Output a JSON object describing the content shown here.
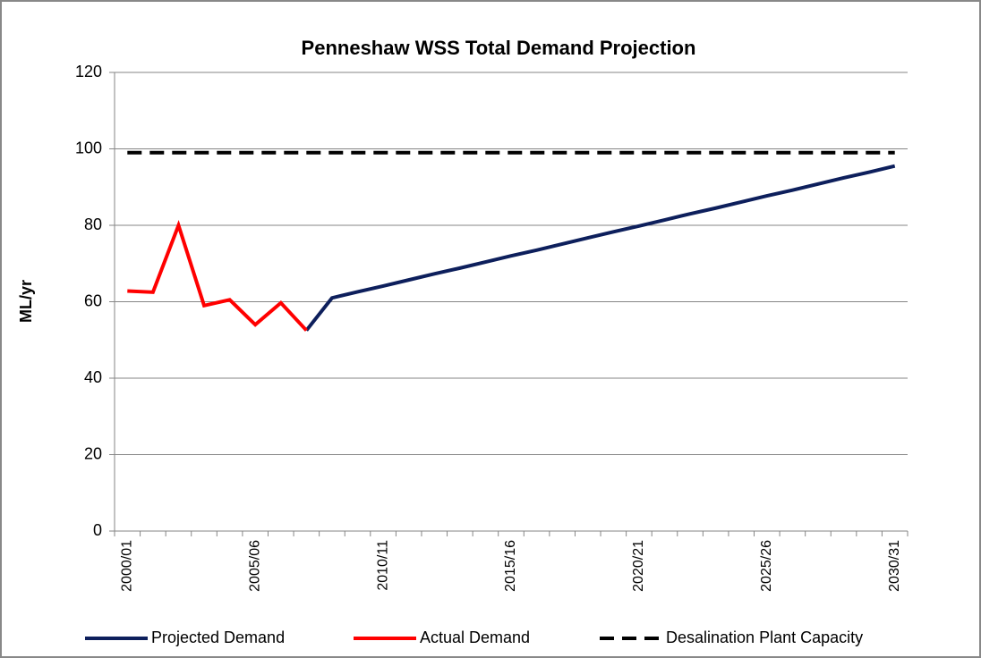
{
  "chart_data": {
    "type": "line",
    "title": "Penneshaw WSS Total Demand Projection",
    "y_label": "ML/yr",
    "categories": [
      "2000/01",
      null,
      null,
      null,
      null,
      "2005/06",
      null,
      null,
      null,
      null,
      "2010/11",
      null,
      null,
      null,
      null,
      "2015/16",
      null,
      null,
      null,
      null,
      "2020/21",
      null,
      null,
      null,
      null,
      "2025/26",
      null,
      null,
      null,
      null,
      "2030/31"
    ],
    "series": [
      {
        "name": "Projected Demand",
        "color": "#0d1f5c",
        "dash": false,
        "values": [
          null,
          null,
          null,
          null,
          null,
          null,
          null,
          52.5,
          61,
          62.6,
          64.1,
          65.7,
          67.3,
          68.8,
          70.4,
          72.0,
          73.5,
          75.1,
          76.7,
          78.3,
          79.8,
          81.4,
          83.0,
          84.5,
          86.1,
          87.7,
          89.2,
          90.8,
          92.4,
          93.9,
          95.5
        ]
      },
      {
        "name": "Actual Demand",
        "color": "#ff0000",
        "dash": false,
        "values": [
          62.8,
          62.5,
          80,
          59,
          60.5,
          54,
          59.7,
          52.5,
          null,
          null,
          null,
          null,
          null,
          null,
          null,
          null,
          null,
          null,
          null,
          null,
          null,
          null,
          null,
          null,
          null,
          null,
          null,
          null,
          null,
          null,
          null
        ]
      },
      {
        "name": "Desalination Plant Capacity",
        "color": "#000000",
        "dash": true,
        "values": [
          99,
          99,
          99,
          99,
          99,
          99,
          99,
          99,
          99,
          99,
          99,
          99,
          99,
          99,
          99,
          99,
          99,
          99,
          99,
          99,
          99,
          99,
          99,
          99,
          99,
          99,
          99,
          99,
          99,
          99,
          99
        ]
      }
    ],
    "ylim": [
      0,
      120
    ],
    "yticks": [
      0,
      20,
      40,
      60,
      80,
      100,
      120
    ],
    "grid": true,
    "legend": "bottom"
  }
}
